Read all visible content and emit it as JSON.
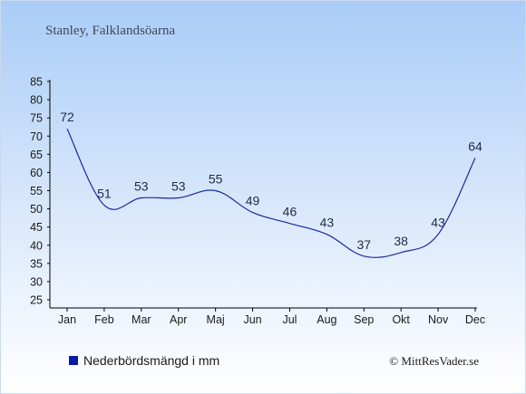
{
  "chart_data": {
    "type": "line",
    "title": "Stanley, Falklandsöarna",
    "categories": [
      "Jan",
      "Feb",
      "Mar",
      "Apr",
      "Maj",
      "Jun",
      "Jul",
      "Aug",
      "Sep",
      "Okt",
      "Nov",
      "Dec"
    ],
    "series": [
      {
        "name": "Nederbördsmängd i mm",
        "values": [
          72,
          51,
          53,
          53,
          55,
          49,
          46,
          43,
          37,
          38,
          43,
          64
        ]
      }
    ],
    "ylim": [
      25,
      85
    ],
    "yticks": [
      25,
      30,
      35,
      40,
      45,
      50,
      55,
      60,
      65,
      70,
      75,
      80,
      85
    ],
    "legend_position": "bottom-left",
    "colors": {
      "line": "#1a2aa0",
      "legend_marker": "#0a1aa8",
      "label_text": "#1d2a4a",
      "axis": "#000000",
      "bg_top": "#a9ccf7",
      "bg_bottom": "#ffffff"
    }
  },
  "copyright": "© MittResVader.se"
}
